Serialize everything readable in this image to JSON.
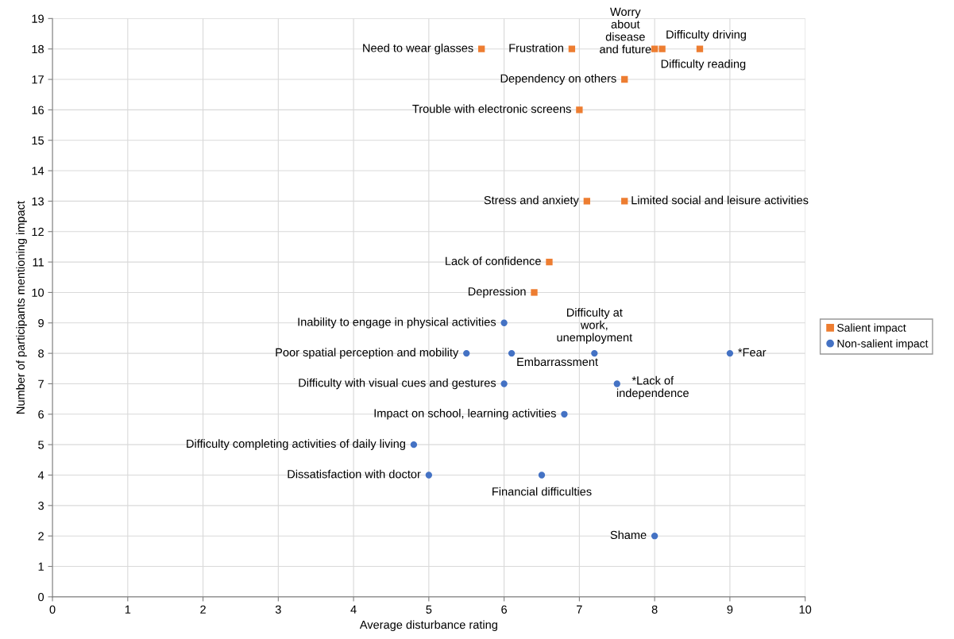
{
  "chart_data": {
    "type": "scatter",
    "xlabel": "Average disturbance rating",
    "ylabel": "Number of participants mentioning impact",
    "xlim": [
      0,
      10
    ],
    "xticks": [
      0,
      1,
      2,
      3,
      4,
      5,
      6,
      7,
      8,
      9,
      10
    ],
    "ylim": [
      0,
      19
    ],
    "yticks": [
      0,
      1,
      2,
      3,
      4,
      5,
      6,
      7,
      8,
      9,
      10,
      11,
      12,
      13,
      14,
      15,
      16,
      17,
      18,
      19
    ],
    "grid": true,
    "legend": "right",
    "series": [
      {
        "name": "Salient impact",
        "color": "#ed7d31",
        "marker": "square",
        "x": [
          5.7,
          6.9,
          8.0,
          8.1,
          8.6,
          7.6,
          7.0,
          7.1,
          7.6,
          6.6,
          6.4
        ],
        "values": [
          18,
          18,
          18,
          18,
          18,
          17,
          16,
          13,
          13,
          11,
          10
        ]
      },
      {
        "name": "Non-salient impact",
        "color": "#4472c4",
        "marker": "circle",
        "x": [
          6.0,
          5.5,
          6.1,
          7.2,
          9.0,
          6.0,
          7.5,
          6.8,
          4.8,
          5.0,
          6.5,
          8.0
        ],
        "values": [
          9,
          8,
          8,
          8,
          8,
          7,
          7,
          6,
          5,
          4,
          4,
          2
        ]
      }
    ],
    "annotations": [
      {
        "text": "Need to wear glasses",
        "x": 5.7,
        "y": 18
      },
      {
        "text": "Frustration",
        "x": 6.9,
        "y": 18
      },
      {
        "text": "Worry\nabout\ndisease\nand future",
        "x": 8.0,
        "y": 18
      },
      {
        "text": "Difficulty reading",
        "x": 8.1,
        "y": 18
      },
      {
        "text": "Difficulty driving",
        "x": 8.6,
        "y": 18
      },
      {
        "text": "Dependency on others",
        "x": 7.6,
        "y": 17
      },
      {
        "text": "Trouble with electronic screens",
        "x": 7.0,
        "y": 16
      },
      {
        "text": "Stress and anxiety",
        "x": 7.1,
        "y": 13
      },
      {
        "text": "Limited social and leisure activities",
        "x": 7.6,
        "y": 13
      },
      {
        "text": "Lack of confidence",
        "x": 6.6,
        "y": 11
      },
      {
        "text": "Depression",
        "x": 6.4,
        "y": 10
      },
      {
        "text": "Inability to engage in physical activities",
        "x": 6.0,
        "y": 9
      },
      {
        "text": "Poor spatial perception and mobility",
        "x": 5.5,
        "y": 8
      },
      {
        "text": "Embarrassment",
        "x": 6.1,
        "y": 8
      },
      {
        "text": "Difficulty at\nwork,\nunemployment",
        "x": 7.2,
        "y": 8
      },
      {
        "text": "*Fear",
        "x": 9.0,
        "y": 8
      },
      {
        "text": "Difficulty with visual cues and gestures",
        "x": 6.0,
        "y": 7
      },
      {
        "text": "*Lack of\nindependence",
        "x": 7.5,
        "y": 7
      },
      {
        "text": "Impact on school, learning activities",
        "x": 6.8,
        "y": 6
      },
      {
        "text": "Difficulty completing activities of daily living",
        "x": 4.8,
        "y": 5
      },
      {
        "text": "Dissatisfaction with doctor",
        "x": 5.0,
        "y": 4
      },
      {
        "text": "Financial difficulties",
        "x": 6.5,
        "y": 4
      },
      {
        "text": "Shame",
        "x": 8.0,
        "y": 2
      }
    ]
  }
}
